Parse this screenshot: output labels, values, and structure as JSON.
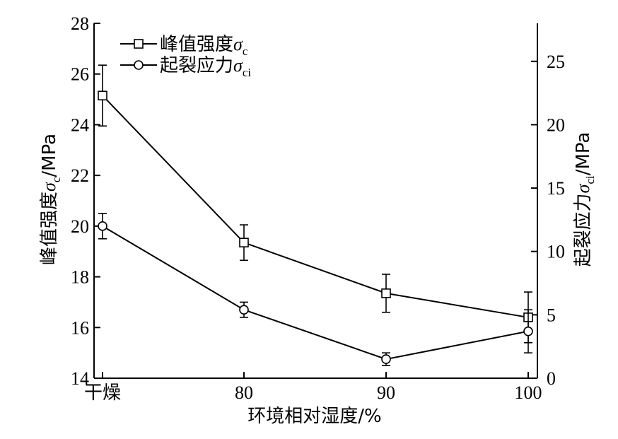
{
  "chart_data": {
    "type": "line",
    "categories": [
      "干燥",
      "80",
      "90",
      "100"
    ],
    "xlabel": "环境相对湿度/%",
    "ylabel_left": {
      "text": "峰值强度",
      "symbol": "σ",
      "subscript": "c",
      "unit": "/MPa"
    },
    "ylabel_right": {
      "text": "起裂应力",
      "symbol": "σ",
      "subscript": "ci",
      "unit": "/MPa"
    },
    "ylim_left": [
      14,
      28
    ],
    "yticks_left": [
      14,
      16,
      18,
      20,
      22,
      24,
      26,
      28
    ],
    "ylim_right": [
      0,
      28
    ],
    "yticks_right": [
      0,
      5,
      10,
      15,
      20,
      25
    ],
    "grid": false,
    "legend_position": "top-left",
    "series": [
      {
        "name": "峰值强度",
        "legend_symbol": "σ",
        "legend_subscript": "c",
        "axis": "left",
        "marker": "square",
        "values": [
          25.15,
          19.35,
          17.35,
          16.4
        ],
        "error": [
          1.2,
          0.7,
          0.75,
          1.0
        ]
      },
      {
        "name": "起裂应力",
        "legend_symbol": "σ",
        "legend_subscript": "ci",
        "axis": "right",
        "marker": "circle",
        "values": [
          12.0,
          5.4,
          1.5,
          3.7
        ],
        "error": [
          1.0,
          0.6,
          0.5,
          1.7
        ]
      }
    ]
  }
}
